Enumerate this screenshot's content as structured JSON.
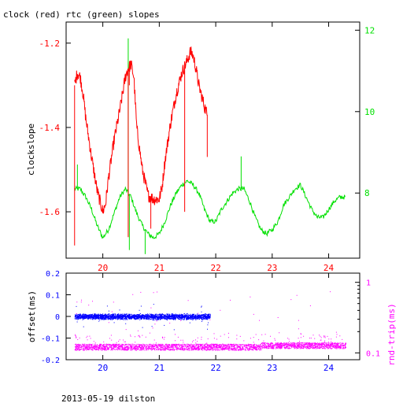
{
  "colors": {
    "clock": "#ff0000",
    "rtc": "#00e000",
    "offset": "#0000ff",
    "rtt": "#ff00ff",
    "axis": "#000000"
  },
  "footer": {
    "label": "2013-05-19 dilston"
  },
  "chart_data": [
    {
      "type": "line",
      "title": "clock (red) rtc (green) slopes",
      "ylabel": "clockslope",
      "xlim": [
        19.35,
        24.55
      ],
      "ylim": [
        -1.71,
        -1.15
      ],
      "y2lim": [
        6.4,
        12.2
      ],
      "x_ticks": [
        20,
        21,
        22,
        23,
        24
      ],
      "y_ticks": [
        -1.2,
        -1.4,
        -1.6
      ],
      "y2_ticks": [
        8,
        10,
        12
      ],
      "grid": false,
      "series": [
        {
          "axis": "left",
          "color": "red",
          "x": [
            19.5,
            19.55,
            19.6,
            19.65,
            19.7,
            19.8,
            19.9,
            20.0,
            20.05,
            20.1,
            20.2,
            20.3,
            20.35,
            20.4,
            20.45,
            20.5,
            20.55,
            20.6,
            20.7,
            20.8,
            20.9,
            21.0,
            21.05,
            21.1,
            21.2,
            21.3,
            21.4,
            21.5,
            21.55,
            21.6,
            21.65,
            21.7,
            21.8,
            21.85
          ],
          "y": [
            -1.3,
            -1.27,
            -1.28,
            -1.32,
            -1.38,
            -1.47,
            -1.55,
            -1.6,
            -1.58,
            -1.52,
            -1.43,
            -1.36,
            -1.32,
            -1.28,
            -1.26,
            -1.25,
            -1.28,
            -1.4,
            -1.5,
            -1.56,
            -1.57,
            -1.57,
            -1.54,
            -1.48,
            -1.39,
            -1.32,
            -1.27,
            -1.24,
            -1.22,
            -1.23,
            -1.26,
            -1.3,
            -1.35,
            -1.37
          ]
        },
        {
          "axis": "right",
          "color": "green",
          "x": [
            19.5,
            19.6,
            19.7,
            19.8,
            19.9,
            20.0,
            20.1,
            20.2,
            20.3,
            20.4,
            20.5,
            20.6,
            20.7,
            20.8,
            20.9,
            21.0,
            21.1,
            21.2,
            21.3,
            21.4,
            21.5,
            21.6,
            21.7,
            21.8,
            21.9,
            22.0,
            22.1,
            22.2,
            22.3,
            22.4,
            22.5,
            22.6,
            22.7,
            22.8,
            22.9,
            23.0,
            23.1,
            23.2,
            23.3,
            23.4,
            23.5,
            23.6,
            23.7,
            23.8,
            23.9,
            24.0,
            24.1,
            24.2,
            24.3
          ],
          "y": [
            8.1,
            8.1,
            7.9,
            7.6,
            7.2,
            6.9,
            7.1,
            7.5,
            7.9,
            8.1,
            7.9,
            7.5,
            7.2,
            7.0,
            6.9,
            7.0,
            7.3,
            7.7,
            8.0,
            8.2,
            8.3,
            8.2,
            8.0,
            7.6,
            7.3,
            7.3,
            7.6,
            7.8,
            8.0,
            8.1,
            8.1,
            7.8,
            7.4,
            7.1,
            7.0,
            7.1,
            7.3,
            7.7,
            7.9,
            8.1,
            8.2,
            7.9,
            7.6,
            7.4,
            7.4,
            7.6,
            7.8,
            7.9,
            7.9
          ]
        }
      ]
    },
    {
      "type": "scatter",
      "ylabel": "offset(ms)",
      "y2label": "rnd-trip(ms)",
      "xlim": [
        19.35,
        24.55
      ],
      "ylim": [
        -0.2,
        0.2
      ],
      "y2lim": [
        0.08,
        1.35
      ],
      "y2_scale": "log",
      "x_ticks": [
        20,
        21,
        22,
        23,
        24
      ],
      "y_ticks": [
        0.2,
        0.1,
        0,
        -0.1,
        -0.2
      ],
      "y2_ticks": [
        1,
        0.1
      ],
      "grid": false,
      "series": [
        {
          "axis": "left",
          "color": "blue",
          "x_range": [
            19.5,
            21.9
          ],
          "center": 0.0,
          "spread": 0.015
        },
        {
          "axis": "right",
          "color": "magenta",
          "x_range": [
            19.5,
            24.3
          ],
          "center": 0.12,
          "spread_low": 0.11,
          "spread_high": 0.135
        }
      ]
    }
  ]
}
